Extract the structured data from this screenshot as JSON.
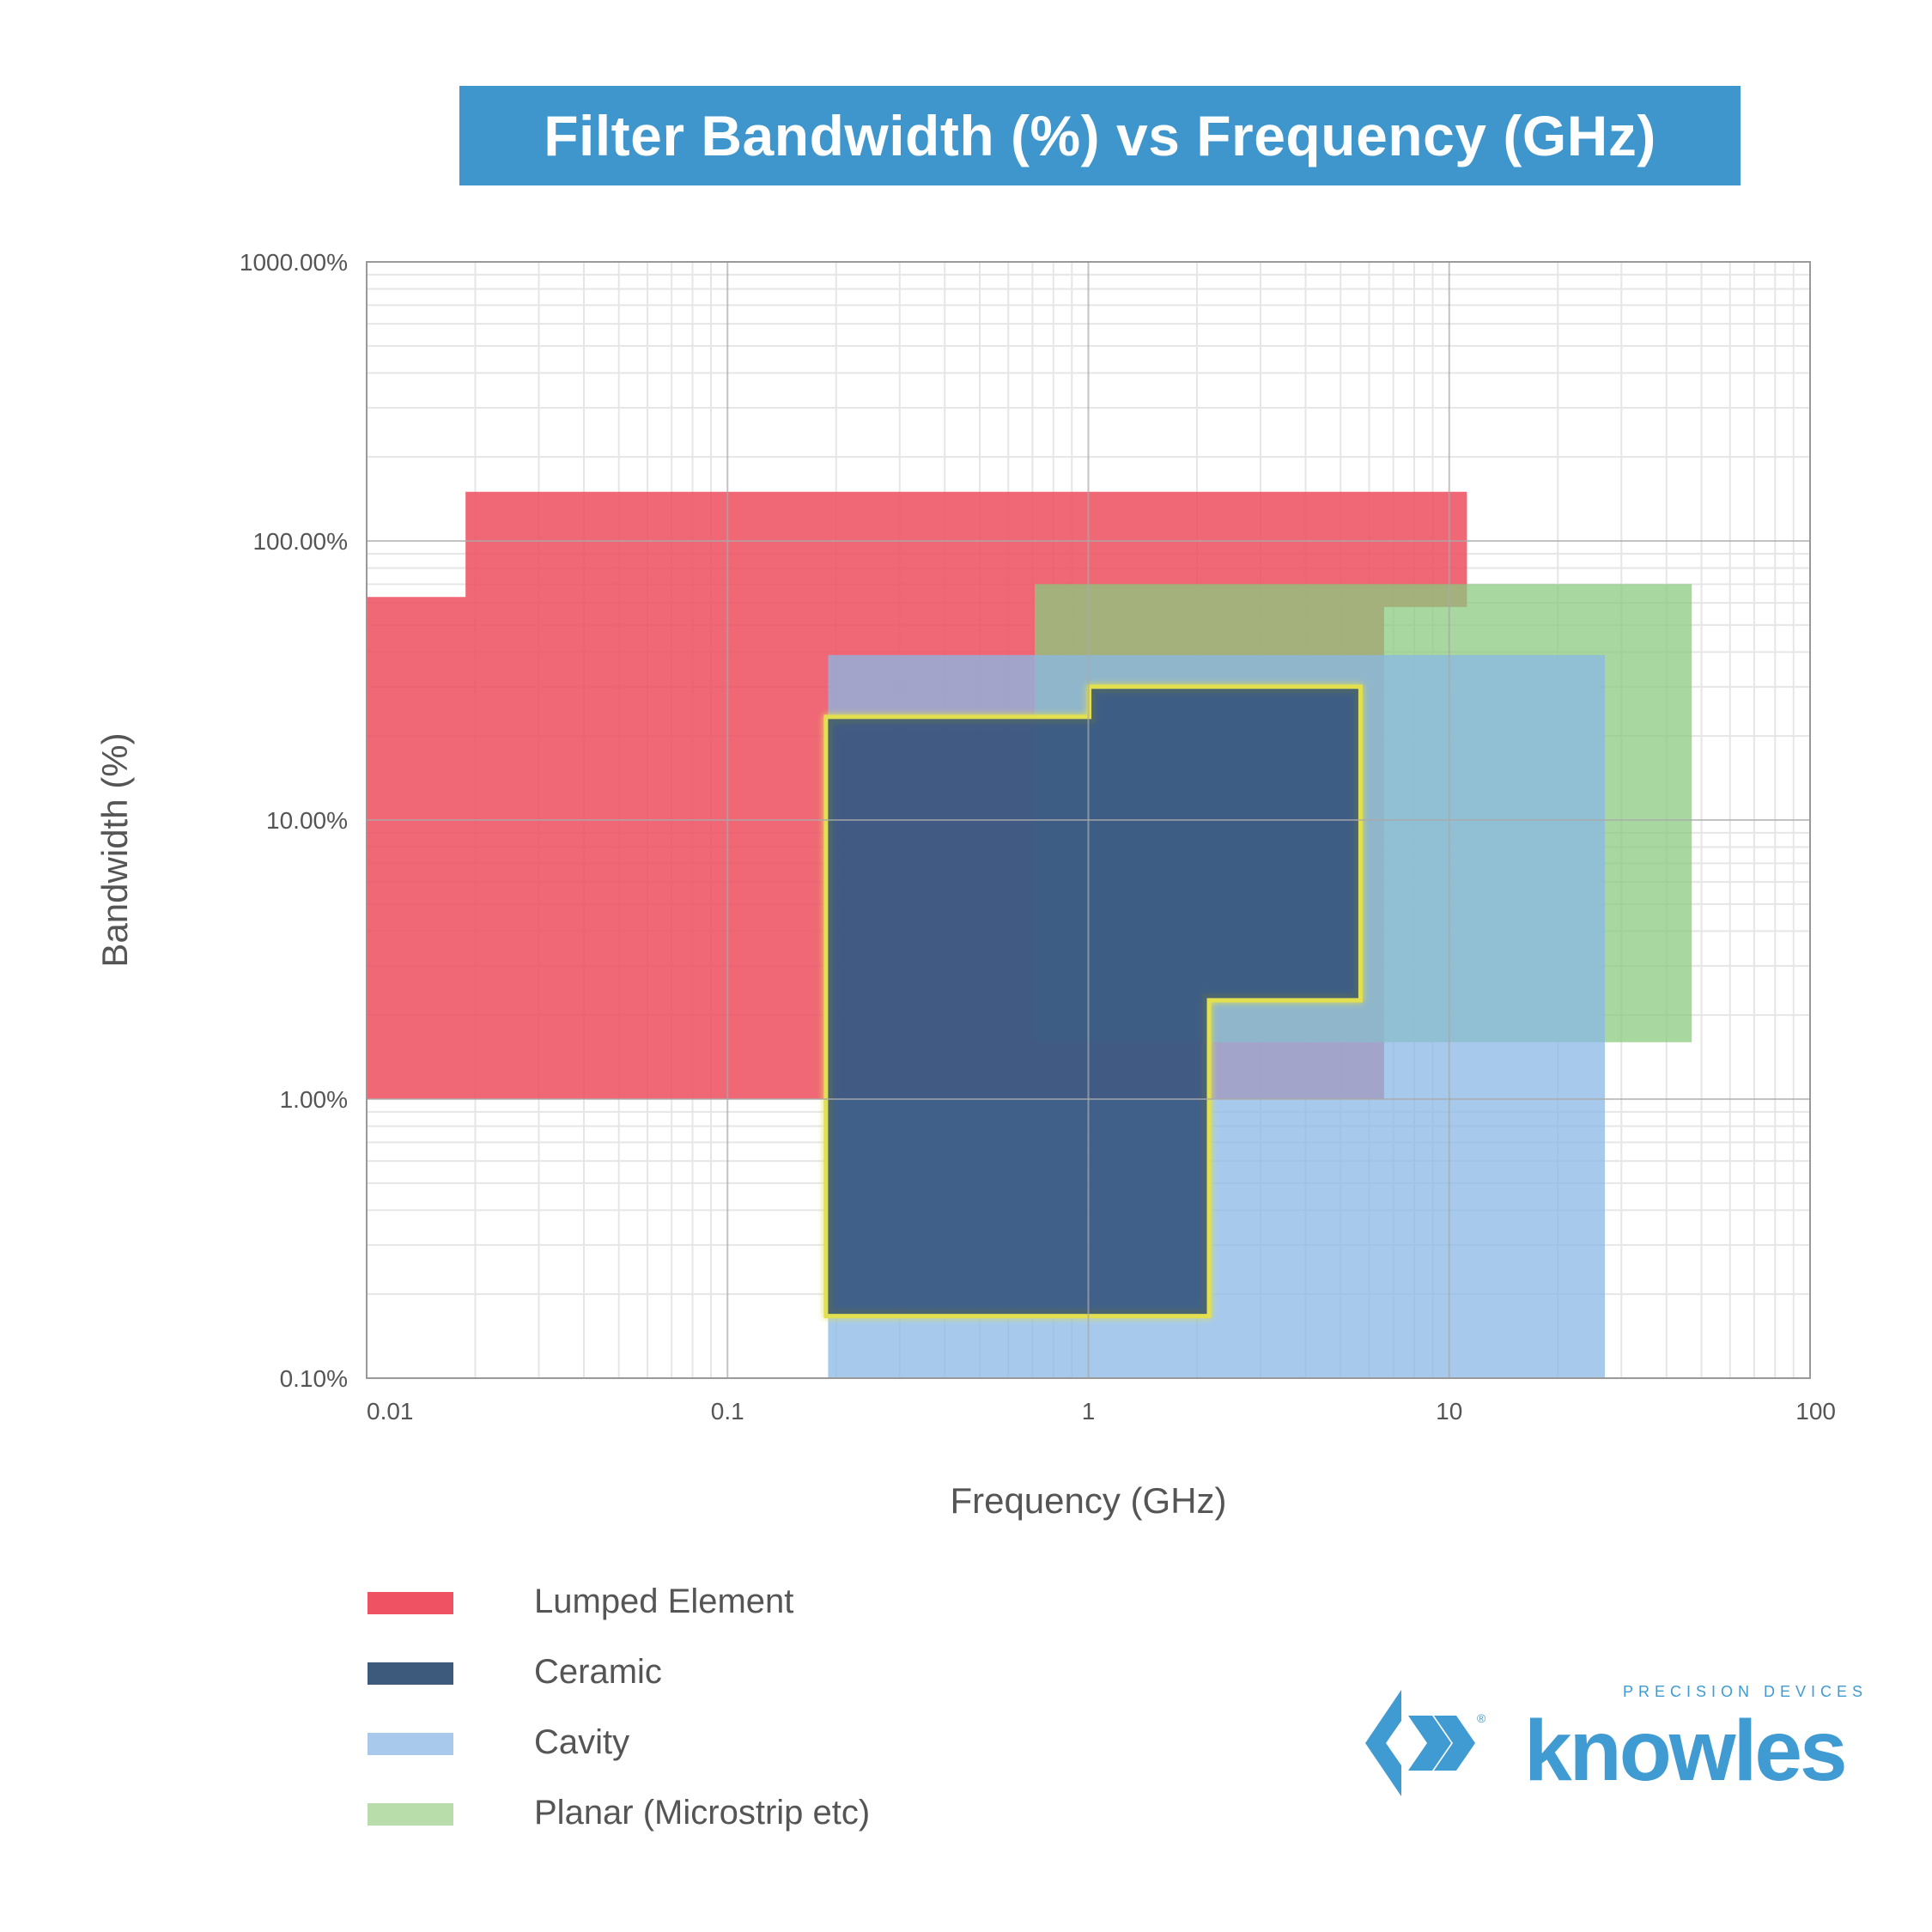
{
  "chart_data": {
    "type": "area",
    "title": "Filter Bandwidth (%) vs Frequency (GHz)",
    "xlabel": "Frequency (GHz)",
    "ylabel": "Bandwidth (%)",
    "x_scale": "log",
    "y_scale": "log",
    "xlim": [
      0.01,
      100
    ],
    "ylim": [
      0.1,
      1000
    ],
    "x_ticks": [
      {
        "value": 0.01,
        "label": "0.01"
      },
      {
        "value": 0.1,
        "label": "0.1"
      },
      {
        "value": 1,
        "label": "1"
      },
      {
        "value": 10,
        "label": "10"
      },
      {
        "value": 100,
        "label": "100"
      }
    ],
    "y_ticks": [
      {
        "value": 0.1,
        "label": "0.10%"
      },
      {
        "value": 1,
        "label": "1.00%"
      },
      {
        "value": 10,
        "label": "10.00%"
      },
      {
        "value": 100,
        "label": "100.00%"
      },
      {
        "value": 1000,
        "label": "1000.00%"
      }
    ],
    "grid": true,
    "series": [
      {
        "name": "Lumped Element",
        "color": "#ee5263",
        "opacity": 0.88,
        "polygon": [
          [
            0.01,
            1.0
          ],
          [
            0.01,
            63
          ],
          [
            0.0188,
            63
          ],
          [
            0.0188,
            150
          ],
          [
            11.2,
            150
          ],
          [
            11.2,
            58
          ],
          [
            6.6,
            58
          ],
          [
            6.6,
            1.0
          ]
        ]
      },
      {
        "name": "Planar (Microstrip etc)",
        "color": "#8bc97f",
        "opacity": 0.75,
        "polygon": [
          [
            0.71,
            1.6
          ],
          [
            0.71,
            70
          ],
          [
            47,
            70
          ],
          [
            47,
            1.6
          ]
        ]
      },
      {
        "name": "Cavity",
        "color": "#8ab8e6",
        "opacity": 0.75,
        "polygon": [
          [
            0.19,
            0.1
          ],
          [
            0.19,
            39
          ],
          [
            27,
            39
          ],
          [
            27,
            0.1
          ]
        ]
      },
      {
        "name": "Ceramic",
        "color": "#2f4e78",
        "opacity": 0.85,
        "outline_color": "#e2e050",
        "polygon": [
          [
            0.19,
            0.17
          ],
          [
            0.19,
            23
          ],
          [
            1.02,
            23
          ],
          [
            1.02,
            29.5
          ],
          [
            5.6,
            29.5
          ],
          [
            5.6,
            2.3
          ],
          [
            2.13,
            2.3
          ],
          [
            2.13,
            0.17
          ]
        ]
      }
    ],
    "legend": {
      "position": "bottom-left",
      "entries": [
        {
          "label": "Lumped Element",
          "color": "#ee5263"
        },
        {
          "label": "Ceramic",
          "color": "#3d5a7d"
        },
        {
          "label": "Cavity",
          "color": "#a8c9ec"
        },
        {
          "label": "Planar (Microstrip etc)",
          "color": "#b9dcab"
        }
      ]
    }
  },
  "brand": {
    "name": "knowles",
    "tagline": "PRECISION DEVICES",
    "color": "#3f9bd1"
  }
}
